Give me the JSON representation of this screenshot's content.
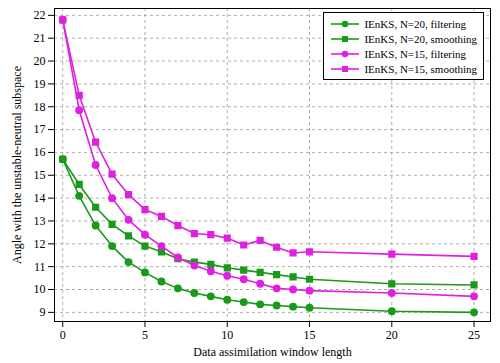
{
  "chart_data": {
    "type": "line",
    "x_label": "Data assimilation window length",
    "y_label": "Angle with the unstable-neutral subspace",
    "x": [
      0,
      1,
      2,
      3,
      4,
      5,
      6,
      7,
      8,
      9,
      10,
      11,
      12,
      13,
      14,
      15,
      20,
      25
    ],
    "series": [
      {
        "name": "IEnKS, N=20, filtering",
        "color": "#1a9a1a",
        "marker": "circle",
        "values": [
          15.7,
          14.1,
          12.8,
          11.9,
          11.2,
          10.75,
          10.35,
          10.05,
          9.85,
          9.7,
          9.55,
          9.45,
          9.35,
          9.3,
          9.25,
          9.2,
          9.05,
          9.0
        ]
      },
      {
        "name": "IEnKS, N=20, smoothing",
        "color": "#1a9a1a",
        "marker": "square",
        "values": [
          15.7,
          14.6,
          13.6,
          12.85,
          12.35,
          11.9,
          11.65,
          11.35,
          11.2,
          11.1,
          10.95,
          10.85,
          10.75,
          10.65,
          10.55,
          10.45,
          10.25,
          10.2
        ]
      },
      {
        "name": "IEnKS, N=15, filtering",
        "color": "#e020e0",
        "marker": "circle",
        "values": [
          21.8,
          17.85,
          15.45,
          14.0,
          13.05,
          12.4,
          11.9,
          11.4,
          11.05,
          10.8,
          10.6,
          10.45,
          10.25,
          10.05,
          10.0,
          9.95,
          9.85,
          9.7
        ]
      },
      {
        "name": "IEnKS, N=15, smoothing",
        "color": "#e020e0",
        "marker": "square",
        "values": [
          21.8,
          18.5,
          16.45,
          15.05,
          14.15,
          13.5,
          13.2,
          12.8,
          12.45,
          12.4,
          12.25,
          11.95,
          12.15,
          11.85,
          11.6,
          11.65,
          11.55,
          11.45
        ]
      }
    ],
    "xlim": [
      -0.5,
      26
    ],
    "ylim": [
      8.6,
      22.3
    ],
    "xticks": [
      0,
      5,
      10,
      15,
      20,
      25
    ],
    "yticks": [
      9,
      10,
      11,
      12,
      13,
      14,
      15,
      16,
      17,
      18,
      19,
      20,
      21,
      22
    ],
    "grid": true,
    "legend": "top-right"
  }
}
